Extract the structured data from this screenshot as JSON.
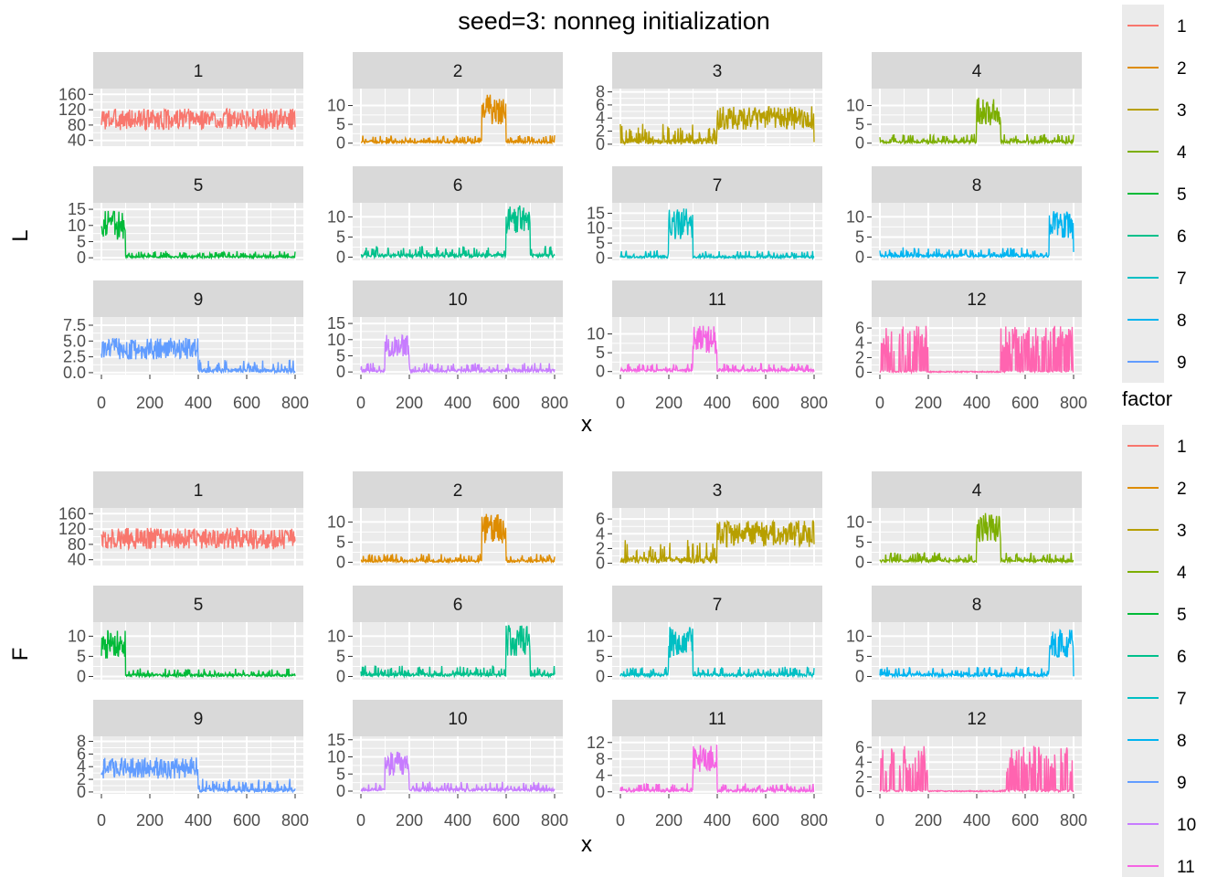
{
  "title": "seed=3: nonneg initialization",
  "colors": {
    "panel_bg": "#EBEBEB",
    "strip_bg": "#D9D9D9",
    "grid": "#FFFFFF",
    "text": "#000000",
    "tick_text": "#4D4D4D"
  },
  "chart_data": [
    {
      "type": "line",
      "ylabel": "L",
      "xlabel": "x",
      "xlim": [
        0,
        800
      ],
      "x_ticks": [
        0,
        200,
        400,
        600,
        800
      ],
      "facets": [
        {
          "label": "1",
          "color": "#F8766D",
          "y_ticks": [
            "40",
            "80",
            "120",
            "160"
          ],
          "ylim": [
            25,
            175
          ],
          "pattern": "noise",
          "base": 95,
          "amp": 28
        },
        {
          "label": "2",
          "color": "#DE8C00",
          "y_ticks": [
            "0",
            "5",
            "10"
          ],
          "ylim": [
            -0.8,
            14.5
          ],
          "pattern": "block",
          "block": [
            500,
            600
          ],
          "high": 9,
          "low": 0.6
        },
        {
          "label": "3",
          "color": "#B79F00",
          "y_ticks": [
            "0",
            "2",
            "4",
            "6",
            "8"
          ],
          "ylim": [
            -0.3,
            8.5
          ],
          "pattern": "block",
          "block": [
            400,
            800
          ],
          "high": 4,
          "low": 0.9
        },
        {
          "label": "4",
          "color": "#7CAE00",
          "y_ticks": [
            "0",
            "5",
            "10"
          ],
          "ylim": [
            -0.8,
            14.5
          ],
          "pattern": "block",
          "block": [
            400,
            500
          ],
          "high": 8.5,
          "low": 0.7
        },
        {
          "label": "5",
          "color": "#00BA38",
          "y_ticks": [
            "0",
            "5",
            "10",
            "15"
          ],
          "ylim": [
            -0.8,
            17
          ],
          "pattern": "block",
          "block": [
            0,
            100
          ],
          "high": 10,
          "low": 0.6
        },
        {
          "label": "6",
          "color": "#00C08B",
          "y_ticks": [
            "0",
            "5",
            "10"
          ],
          "ylim": [
            -0.8,
            13.5
          ],
          "pattern": "block",
          "block": [
            600,
            700
          ],
          "high": 9,
          "low": 0.8
        },
        {
          "label": "7",
          "color": "#00BFC4",
          "y_ticks": [
            "0",
            "5",
            "10",
            "15"
          ],
          "ylim": [
            -0.8,
            18.5
          ],
          "pattern": "block",
          "block": [
            200,
            300
          ],
          "high": 11.5,
          "low": 0.7
        },
        {
          "label": "8",
          "color": "#00B4F0",
          "y_ticks": [
            "0",
            "5",
            "10"
          ],
          "ylim": [
            -0.8,
            13.5
          ],
          "pattern": "block",
          "block": [
            700,
            800
          ],
          "high": 8,
          "low": 0.7
        },
        {
          "label": "9",
          "color": "#619CFF",
          "y_ticks": [
            "0.0",
            "2.5",
            "5.0",
            "7.5"
          ],
          "ylim": [
            -0.3,
            8.8
          ],
          "pattern": "block",
          "block": [
            0,
            400
          ],
          "high": 3.8,
          "low": 0.6
        },
        {
          "label": "10",
          "color": "#C77CFF",
          "y_ticks": [
            "0",
            "5",
            "10",
            "15"
          ],
          "ylim": [
            -0.8,
            17
          ],
          "pattern": "block",
          "block": [
            100,
            200
          ],
          "high": 8,
          "low": 0.8
        },
        {
          "label": "11",
          "color": "#F564E3",
          "y_ticks": [
            "0",
            "5",
            "10"
          ],
          "ylim": [
            -0.8,
            14.5
          ],
          "pattern": "block",
          "block": [
            300,
            400
          ],
          "high": 8.5,
          "low": 0.6
        },
        {
          "label": "12",
          "color": "#FF64B0",
          "y_ticks": [
            "0",
            "2",
            "4",
            "6"
          ],
          "ylim": [
            -0.3,
            7.5
          ],
          "pattern": "spikes",
          "spikes": [
            [
              0,
              60
            ],
            [
              80,
              200
            ],
            [
              500,
              800
            ]
          ],
          "high": 4.5
        }
      ]
    },
    {
      "type": "line",
      "ylabel": "F",
      "xlabel": "x",
      "xlim": [
        0,
        800
      ],
      "x_ticks": [
        0,
        200,
        400,
        600,
        800
      ],
      "facets": [
        {
          "label": "1",
          "color": "#F8766D",
          "y_ticks": [
            "40",
            "80",
            "120",
            "160"
          ],
          "ylim": [
            25,
            175
          ],
          "pattern": "noise",
          "base": 95,
          "amp": 28
        },
        {
          "label": "2",
          "color": "#DE8C00",
          "y_ticks": [
            "0",
            "5",
            "10"
          ],
          "ylim": [
            -0.8,
            13.5
          ],
          "pattern": "block",
          "block": [
            500,
            600
          ],
          "high": 8.5,
          "low": 0.6
        },
        {
          "label": "3",
          "color": "#B79F00",
          "y_ticks": [
            "0",
            "2",
            "4",
            "6"
          ],
          "ylim": [
            -0.3,
            7.5
          ],
          "pattern": "block",
          "block": [
            400,
            800
          ],
          "high": 4,
          "low": 0.9
        },
        {
          "label": "4",
          "color": "#7CAE00",
          "y_ticks": [
            "0",
            "5",
            "10"
          ],
          "ylim": [
            -0.8,
            13.5
          ],
          "pattern": "block",
          "block": [
            400,
            500
          ],
          "high": 8.5,
          "low": 0.7
        },
        {
          "label": "5",
          "color": "#00BA38",
          "y_ticks": [
            "0",
            "5",
            "10"
          ],
          "ylim": [
            -0.8,
            13.5
          ],
          "pattern": "block",
          "block": [
            0,
            100
          ],
          "high": 8,
          "low": 0.6
        },
        {
          "label": "6",
          "color": "#00C08B",
          "y_ticks": [
            "0",
            "5",
            "10"
          ],
          "ylim": [
            -0.8,
            13.5
          ],
          "pattern": "block",
          "block": [
            600,
            700
          ],
          "high": 9,
          "low": 0.8
        },
        {
          "label": "7",
          "color": "#00BFC4",
          "y_ticks": [
            "0",
            "5",
            "10"
          ],
          "ylim": [
            -0.8,
            13.5
          ],
          "pattern": "block",
          "block": [
            200,
            300
          ],
          "high": 8.5,
          "low": 0.7
        },
        {
          "label": "8",
          "color": "#00B4F0",
          "y_ticks": [
            "0",
            "5",
            "10"
          ],
          "ylim": [
            -0.8,
            13.5
          ],
          "pattern": "block",
          "block": [
            700,
            800
          ],
          "high": 8,
          "low": 0.7
        },
        {
          "label": "9",
          "color": "#619CFF",
          "y_ticks": [
            "0",
            "2",
            "4",
            "6",
            "8"
          ],
          "ylim": [
            -0.3,
            8.8
          ],
          "pattern": "block",
          "block": [
            0,
            400
          ],
          "high": 3.8,
          "low": 0.6
        },
        {
          "label": "10",
          "color": "#C77CFF",
          "y_ticks": [
            "0",
            "5",
            "10",
            "15"
          ],
          "ylim": [
            -0.8,
            16
          ],
          "pattern": "block",
          "block": [
            100,
            200
          ],
          "high": 8,
          "low": 0.8
        },
        {
          "label": "11",
          "color": "#F564E3",
          "y_ticks": [
            "0",
            "4",
            "8",
            "12"
          ],
          "ylim": [
            -0.5,
            13.5
          ],
          "pattern": "block",
          "block": [
            300,
            400
          ],
          "high": 8,
          "low": 0.6
        },
        {
          "label": "12",
          "color": "#FF64B0",
          "y_ticks": [
            "0",
            "2",
            "4",
            "6"
          ],
          "ylim": [
            -0.3,
            7.5
          ],
          "pattern": "spikes",
          "spikes": [
            [
              0,
              60
            ],
            [
              80,
              200
            ],
            [
              500,
              800
            ]
          ],
          "high": 4.5
        }
      ]
    }
  ],
  "legends": [
    {
      "title": "",
      "entries": [
        {
          "label": "1",
          "color": "#F8766D"
        },
        {
          "label": "2",
          "color": "#DE8C00"
        },
        {
          "label": "3",
          "color": "#B79F00"
        },
        {
          "label": "4",
          "color": "#7CAE00"
        },
        {
          "label": "5",
          "color": "#00BA38"
        },
        {
          "label": "6",
          "color": "#00C08B"
        },
        {
          "label": "7",
          "color": "#00BFC4"
        },
        {
          "label": "8",
          "color": "#00B4F0"
        },
        {
          "label": "9",
          "color": "#619CFF"
        }
      ]
    },
    {
      "title": "factor",
      "entries": [
        {
          "label": "1",
          "color": "#F8766D"
        },
        {
          "label": "2",
          "color": "#DE8C00"
        },
        {
          "label": "3",
          "color": "#B79F00"
        },
        {
          "label": "4",
          "color": "#7CAE00"
        },
        {
          "label": "5",
          "color": "#00BA38"
        },
        {
          "label": "6",
          "color": "#00C08B"
        },
        {
          "label": "7",
          "color": "#00BFC4"
        },
        {
          "label": "8",
          "color": "#00B4F0"
        },
        {
          "label": "9",
          "color": "#619CFF"
        },
        {
          "label": "10",
          "color": "#C77CFF"
        },
        {
          "label": "11",
          "color": "#F564E3"
        }
      ]
    }
  ]
}
